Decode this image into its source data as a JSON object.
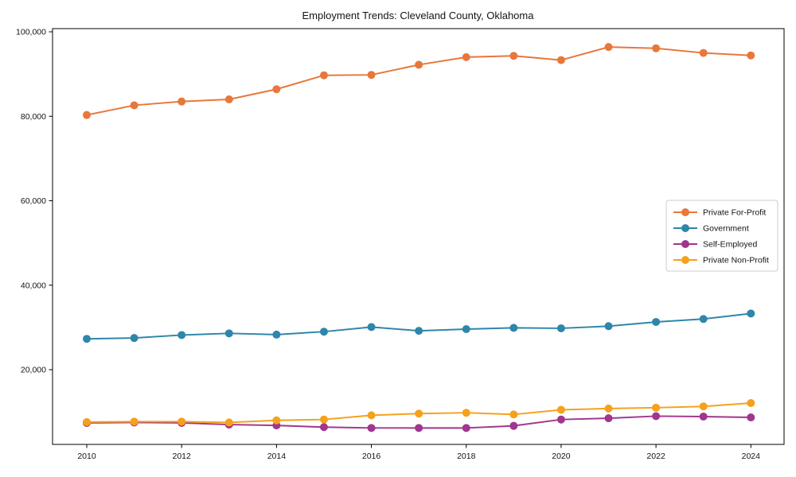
{
  "chart_data": {
    "type": "line",
    "title": "Employment Trends: Cleveland County, Oklahoma",
    "xlabel": "",
    "ylabel": "",
    "grid": false,
    "legend_position": "center-right",
    "x": [
      2010,
      2011,
      2012,
      2013,
      2014,
      2015,
      2016,
      2017,
      2018,
      2019,
      2020,
      2021,
      2022,
      2023,
      2024
    ],
    "series": [
      {
        "name": "Private For-Profit",
        "color": "#E8773B",
        "values": [
          80300,
          82600,
          83500,
          84000,
          86400,
          89700,
          89800,
          92200,
          94000,
          94300,
          93300,
          96400,
          96100,
          95000,
          94400
        ]
      },
      {
        "name": "Government",
        "color": "#2E86AB",
        "values": [
          27300,
          27500,
          28200,
          28600,
          28300,
          29000,
          30100,
          29200,
          29600,
          29900,
          29800,
          30300,
          31300,
          32000,
          33300
        ]
      },
      {
        "name": "Self-Employed",
        "color": "#A0368F",
        "values": [
          7400,
          7500,
          7400,
          7000,
          6800,
          6400,
          6200,
          6200,
          6200,
          6700,
          8200,
          8500,
          9000,
          8900,
          8700
        ]
      },
      {
        "name": "Private Non-Profit",
        "color": "#F5A11C",
        "values": [
          7600,
          7700,
          7700,
          7500,
          8000,
          8200,
          9200,
          9600,
          9800,
          9400,
          10500,
          10800,
          11000,
          11300,
          12100
        ]
      }
    ],
    "xticks": {
      "values": [
        2010,
        2012,
        2014,
        2016,
        2018,
        2020,
        2022,
        2024
      ],
      "labels": [
        "2010",
        "2012",
        "2014",
        "2016",
        "2018",
        "2020",
        "2022",
        "2024"
      ]
    },
    "yticks": {
      "values": [
        20000,
        40000,
        60000,
        80000,
        100000
      ],
      "labels": [
        "20,000",
        "40,000",
        "60,000",
        "80,000",
        "100,000"
      ]
    },
    "xlim": [
      2009.3,
      2024.7
    ],
    "ylim": [
      2300,
      100800
    ],
    "axis_color": "#000000",
    "legend_border_color": "#cccccc",
    "background_color": "#ffffff"
  }
}
